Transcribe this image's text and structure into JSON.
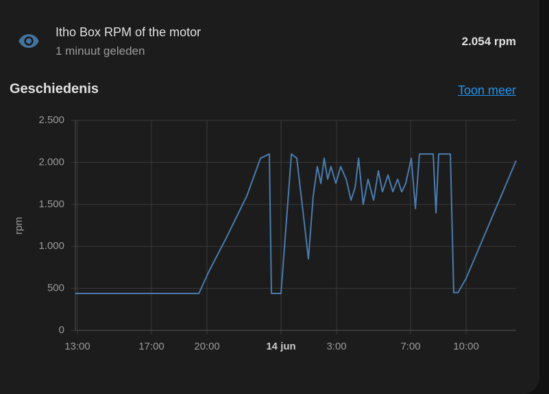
{
  "header": {
    "title": "Itho Box RPM of the motor",
    "subtitle": "1 minuut geleden",
    "state": "2.054 rpm"
  },
  "history": {
    "title": "Geschiedenis",
    "link": "Toon meer"
  },
  "chart_data": {
    "type": "line",
    "ylabel": "rpm",
    "grid": true,
    "x": [
      12.89,
      19.56,
      20.1,
      21.04,
      22.15,
      22.89,
      23.37,
      23.48,
      24.0,
      24.56,
      24.85,
      25.3,
      25.48,
      25.74,
      25.96,
      26.15,
      26.33,
      26.52,
      26.7,
      26.96,
      27.22,
      27.52,
      27.78,
      28.0,
      28.19,
      28.44,
      28.7,
      29.0,
      29.26,
      29.48,
      29.78,
      30.04,
      30.3,
      30.52,
      30.74,
      31.04,
      31.26,
      31.48,
      32.22,
      32.37,
      32.52,
      33.15,
      33.33,
      33.56,
      34.0,
      36.7
    ],
    "series": [
      {
        "name": "Itho Box RPM of the motor",
        "color": "#4a7cb0",
        "values": [
          440,
          440,
          700,
          1100,
          1600,
          2050,
          2100,
          440,
          440,
          2100,
          2050,
          1200,
          850,
          1600,
          1950,
          1750,
          2050,
          1800,
          1950,
          1750,
          1950,
          1800,
          1550,
          1700,
          2050,
          1500,
          1800,
          1550,
          1900,
          1650,
          1850,
          1650,
          1800,
          1650,
          1750,
          2050,
          1450,
          2100,
          2100,
          1400,
          2100,
          2100,
          450,
          450,
          620,
          2020
        ]
      }
    ],
    "xlim": [
      12.89,
      36.7
    ],
    "xticks": [
      {
        "value": 13,
        "label": "13:00"
      },
      {
        "value": 17,
        "label": "17:00"
      },
      {
        "value": 20,
        "label": "20:00"
      },
      {
        "value": 24,
        "label": "14 jun"
      },
      {
        "value": 27,
        "label": "3:00"
      },
      {
        "value": 31,
        "label": "7:00"
      },
      {
        "value": 34,
        "label": "10:00"
      }
    ],
    "ylim": [
      0,
      2500
    ],
    "yticks": [
      0,
      500,
      {
        "value": 1000,
        "label": "1.000"
      },
      {
        "value": 1500,
        "label": "1.500"
      },
      {
        "value": 2000,
        "label": "2.000"
      },
      {
        "value": 2500,
        "label": "2.500"
      }
    ]
  }
}
